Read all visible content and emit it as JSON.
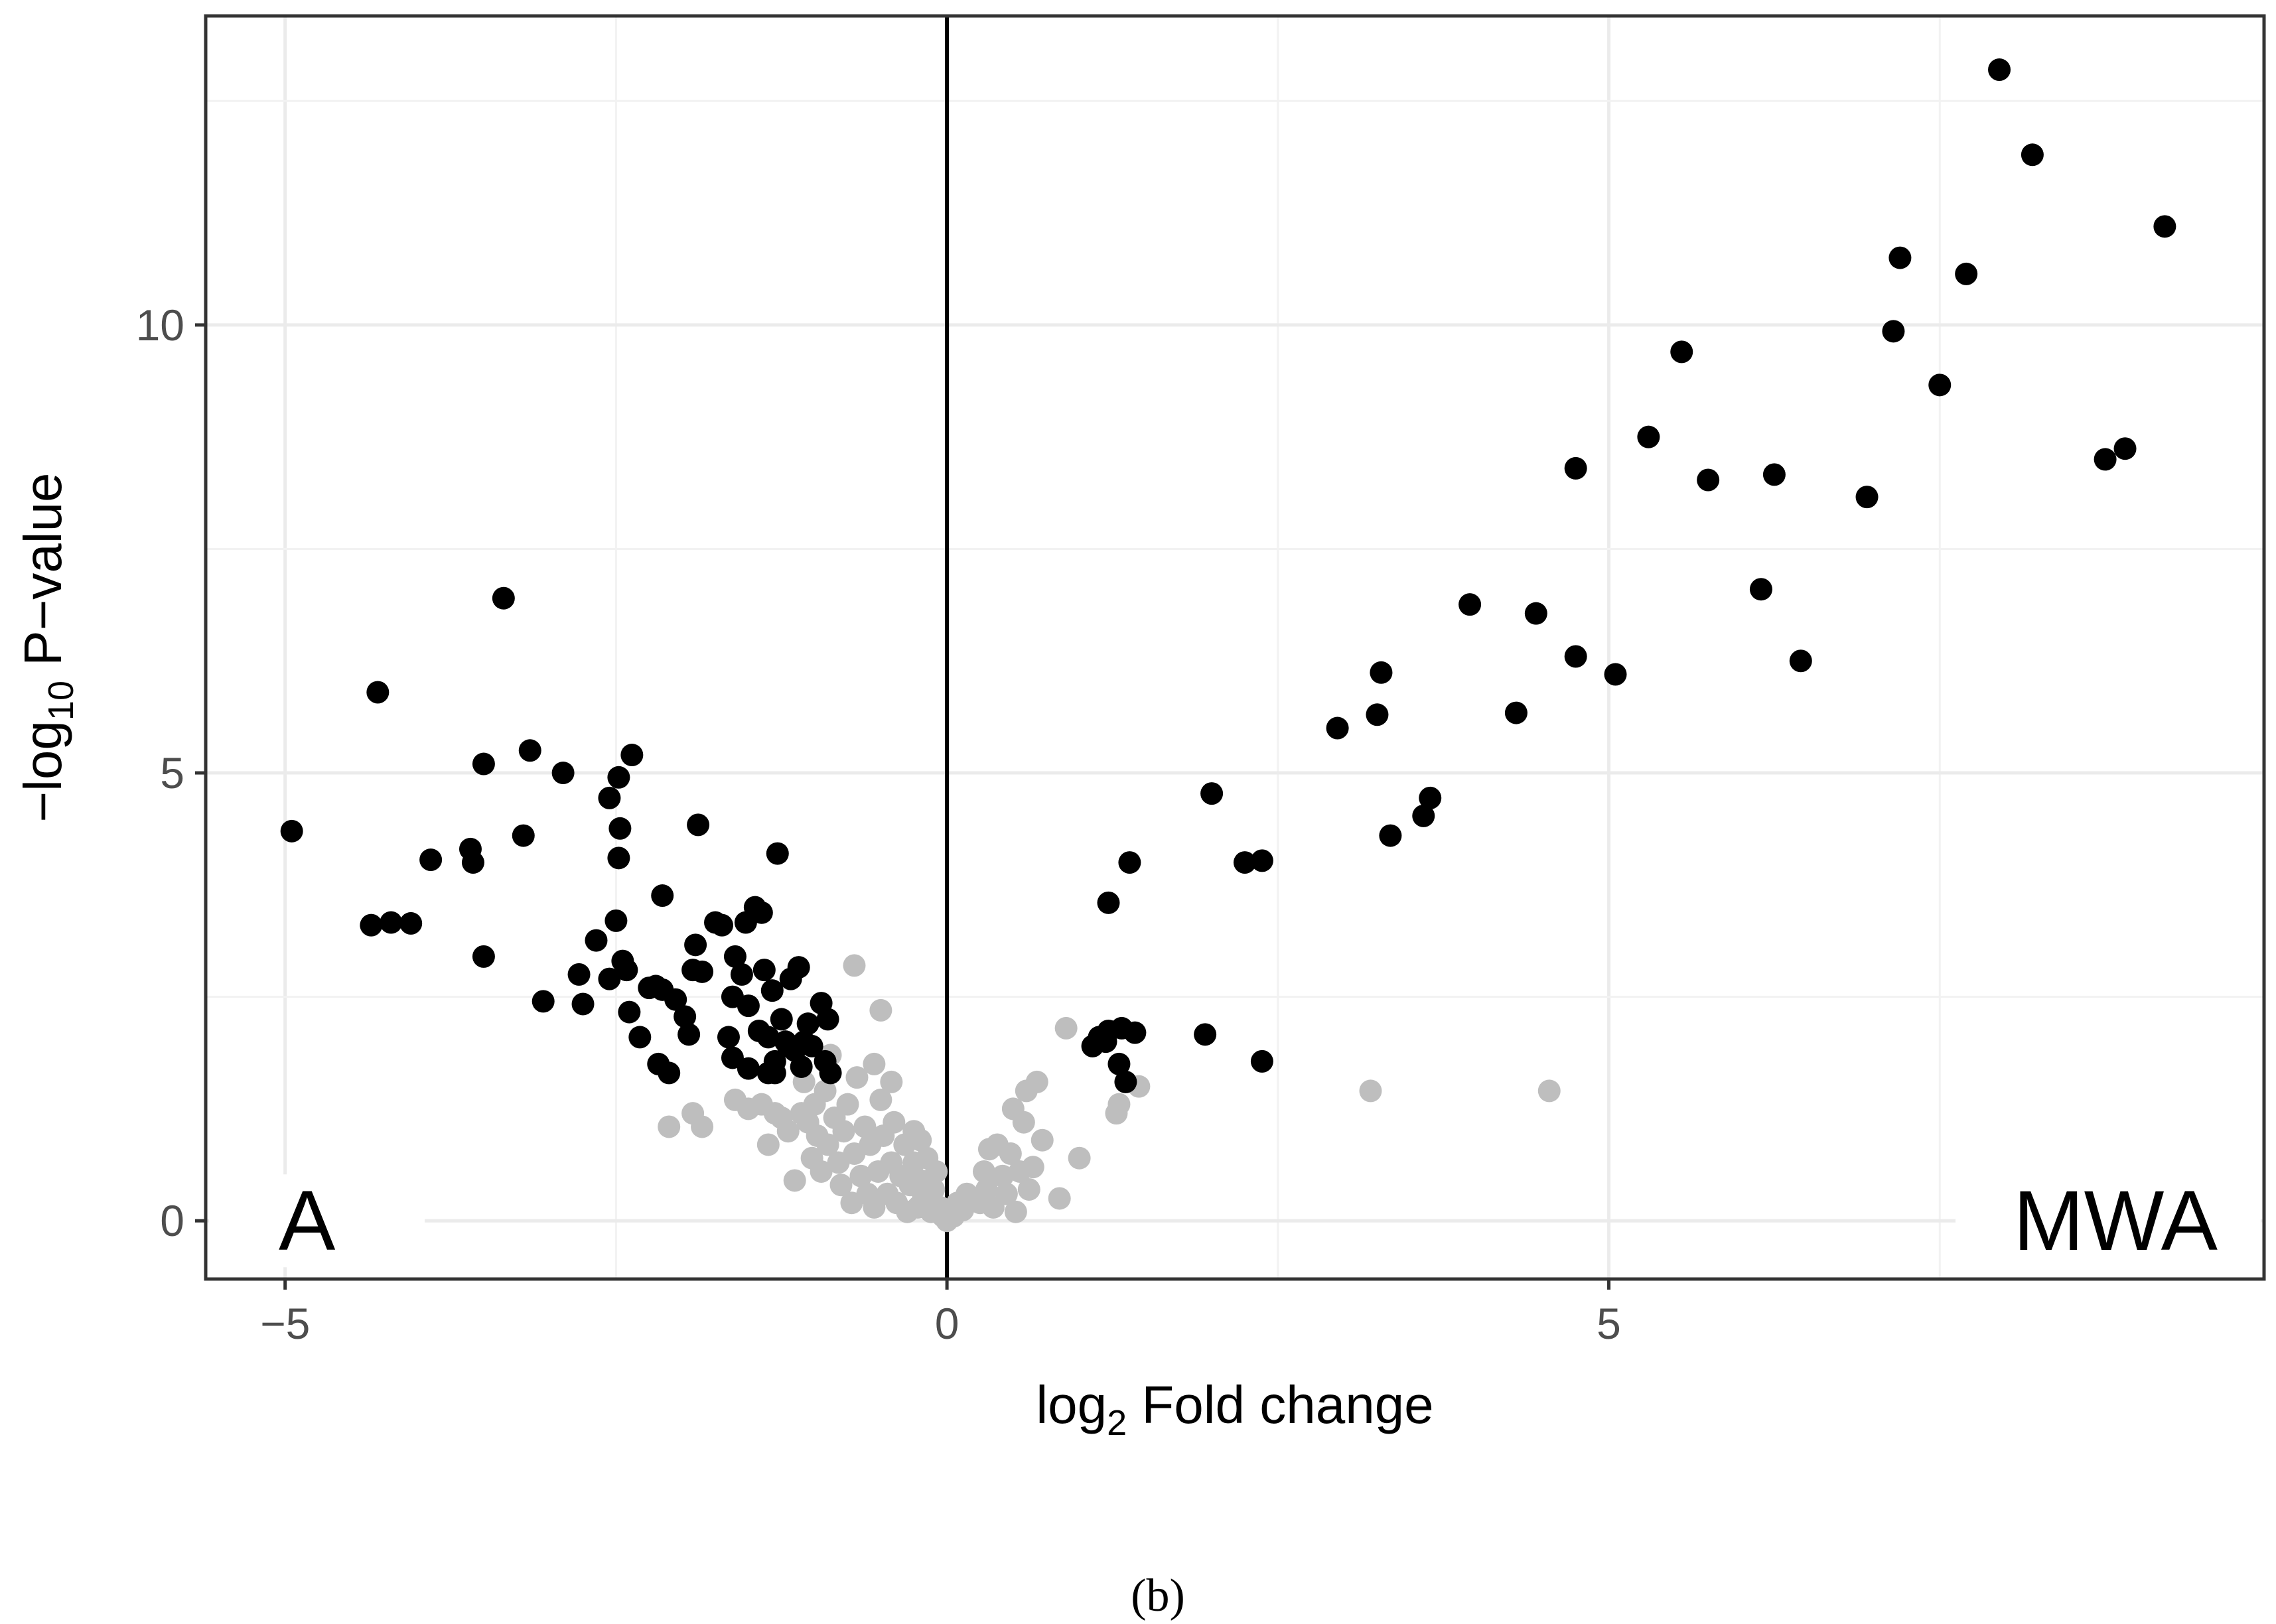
{
  "chart_data": {
    "type": "scatter",
    "title": "",
    "xlabel": {
      "prefix": "log",
      "subscript": "2",
      "suffix": " Fold change"
    },
    "ylabel": {
      "prefix": "−log",
      "subscript": "10",
      "suffix": " P−value"
    },
    "xlim": [
      -5.6,
      9.95
    ],
    "ylim": [
      -0.65,
      13.45
    ],
    "x_ticks": [
      -5,
      0,
      5
    ],
    "x_tick_labels": [
      "−5",
      "0",
      "5"
    ],
    "y_ticks": [
      0,
      5,
      10
    ],
    "y_tick_labels": [
      "0",
      "5",
      "10"
    ],
    "grid": true,
    "vline_x": 0,
    "corner_labels": {
      "left": "A",
      "right": "MWA"
    },
    "panel_label": "(b)",
    "colors": {
      "significant": "#000000",
      "not_significant": "#bebebe",
      "grid": "#ebebeb"
    },
    "series": [
      {
        "role": "significant",
        "points": [
          [
            -4.95,
            4.35
          ],
          [
            -4.3,
            5.9
          ],
          [
            -4.35,
            3.3
          ],
          [
            -4.2,
            3.33
          ],
          [
            -4.05,
            3.32
          ],
          [
            -3.9,
            4.03
          ],
          [
            -3.6,
            4.15
          ],
          [
            -3.58,
            4.0
          ],
          [
            -3.5,
            5.1
          ],
          [
            -3.5,
            2.95
          ],
          [
            -3.35,
            6.95
          ],
          [
            -3.2,
            4.3
          ],
          [
            -3.15,
            5.25
          ],
          [
            -3.05,
            2.45
          ],
          [
            -2.9,
            5.0
          ],
          [
            -2.78,
            2.75
          ],
          [
            -2.75,
            2.42
          ],
          [
            -2.65,
            3.13
          ],
          [
            -2.55,
            4.72
          ],
          [
            -2.55,
            2.7
          ],
          [
            -2.5,
            3.35
          ],
          [
            -2.48,
            4.95
          ],
          [
            -2.48,
            4.05
          ],
          [
            -2.47,
            4.38
          ],
          [
            -2.45,
            2.9
          ],
          [
            -2.42,
            2.8
          ],
          [
            -2.4,
            2.33
          ],
          [
            -2.38,
            5.2
          ],
          [
            -2.32,
            2.05
          ],
          [
            -2.25,
            2.6
          ],
          [
            -2.2,
            2.62
          ],
          [
            -2.18,
            1.75
          ],
          [
            -2.15,
            3.63
          ],
          [
            -2.15,
            2.58
          ],
          [
            -2.1,
            1.65
          ],
          [
            -2.05,
            2.47
          ],
          [
            -1.98,
            2.28
          ],
          [
            -1.95,
            2.08
          ],
          [
            -1.92,
            2.8
          ],
          [
            -1.9,
            3.08
          ],
          [
            -1.88,
            4.42
          ],
          [
            -1.85,
            2.78
          ],
          [
            -1.75,
            3.33
          ],
          [
            -1.7,
            3.3
          ],
          [
            -1.65,
            2.05
          ],
          [
            -1.62,
            2.5
          ],
          [
            -1.62,
            1.82
          ],
          [
            -1.6,
            2.95
          ],
          [
            -1.55,
            2.75
          ],
          [
            -1.52,
            3.33
          ],
          [
            -1.5,
            2.4
          ],
          [
            -1.5,
            1.7
          ],
          [
            -1.45,
            3.5
          ],
          [
            -1.42,
            2.12
          ],
          [
            -1.4,
            3.44
          ],
          [
            -1.38,
            2.8
          ],
          [
            -1.35,
            2.05
          ],
          [
            -1.35,
            1.65
          ],
          [
            -1.32,
            2.57
          ],
          [
            -1.3,
            1.78
          ],
          [
            -1.3,
            1.65
          ],
          [
            -1.28,
            4.1
          ],
          [
            -1.25,
            2.25
          ],
          [
            -1.22,
            2.0
          ],
          [
            -1.2,
            1.95
          ],
          [
            -1.18,
            2.7
          ],
          [
            -1.15,
            1.9
          ],
          [
            -1.12,
            2.83
          ],
          [
            -1.1,
            1.72
          ],
          [
            -1.08,
            2.0
          ],
          [
            -1.05,
            2.2
          ],
          [
            -1.02,
            1.95
          ],
          [
            -0.95,
            2.43
          ],
          [
            -0.92,
            1.78
          ],
          [
            -0.9,
            2.25
          ],
          [
            -0.88,
            1.65
          ],
          [
            1.1,
            1.95
          ],
          [
            1.15,
            2.05
          ],
          [
            1.2,
            2.0
          ],
          [
            1.22,
            2.12
          ],
          [
            1.22,
            3.55
          ],
          [
            1.3,
            1.75
          ],
          [
            1.32,
            2.15
          ],
          [
            1.35,
            1.55
          ],
          [
            1.38,
            4.0
          ],
          [
            1.42,
            2.1
          ],
          [
            1.95,
            2.08
          ],
          [
            2.0,
            4.77
          ],
          [
            2.25,
            4.0
          ],
          [
            2.38,
            4.02
          ],
          [
            2.38,
            1.78
          ],
          [
            2.95,
            5.5
          ],
          [
            3.25,
            5.65
          ],
          [
            3.28,
            6.12
          ],
          [
            3.35,
            4.3
          ],
          [
            3.6,
            4.52
          ],
          [
            3.65,
            4.72
          ],
          [
            3.95,
            6.88
          ],
          [
            4.3,
            5.67
          ],
          [
            4.45,
            6.78
          ],
          [
            4.75,
            6.3
          ],
          [
            4.75,
            8.4
          ],
          [
            5.05,
            6.1
          ],
          [
            5.3,
            8.75
          ],
          [
            5.55,
            9.7
          ],
          [
            5.75,
            8.27
          ],
          [
            6.15,
            7.05
          ],
          [
            6.25,
            8.33
          ],
          [
            6.45,
            6.25
          ],
          [
            6.95,
            8.08
          ],
          [
            7.15,
            9.93
          ],
          [
            7.2,
            10.75
          ],
          [
            7.5,
            9.33
          ],
          [
            7.7,
            10.57
          ],
          [
            7.95,
            12.85
          ],
          [
            8.2,
            11.9
          ],
          [
            8.75,
            8.5
          ],
          [
            8.9,
            8.62
          ],
          [
            9.2,
            11.1
          ]
        ]
      },
      {
        "role": "not_significant",
        "points": [
          [
            -2.1,
            1.05
          ],
          [
            -1.92,
            1.2
          ],
          [
            -1.85,
            1.05
          ],
          [
            -1.6,
            1.35
          ],
          [
            -1.5,
            1.25
          ],
          [
            -1.4,
            1.3
          ],
          [
            -1.35,
            0.85
          ],
          [
            -1.3,
            1.2
          ],
          [
            -1.25,
            1.15
          ],
          [
            -1.2,
            1.0
          ],
          [
            -1.15,
            0.45
          ],
          [
            -1.1,
            1.2
          ],
          [
            -1.08,
            1.55
          ],
          [
            -1.05,
            1.1
          ],
          [
            -1.02,
            0.7
          ],
          [
            -1.0,
            1.3
          ],
          [
            -0.98,
            0.95
          ],
          [
            -0.95,
            0.55
          ],
          [
            -0.92,
            1.45
          ],
          [
            -0.9,
            0.85
          ],
          [
            -0.88,
            1.85
          ],
          [
            -0.85,
            1.15
          ],
          [
            -0.82,
            0.65
          ],
          [
            -0.8,
            0.4
          ],
          [
            -0.78,
            1.0
          ],
          [
            -0.75,
            1.3
          ],
          [
            -0.72,
            0.2
          ],
          [
            -0.7,
            0.75
          ],
          [
            -0.7,
            2.85
          ],
          [
            -0.68,
            1.6
          ],
          [
            -0.65,
            0.5
          ],
          [
            -0.62,
            1.05
          ],
          [
            -0.6,
            0.3
          ],
          [
            -0.58,
            0.85
          ],
          [
            -0.55,
            1.75
          ],
          [
            -0.55,
            0.15
          ],
          [
            -0.52,
            0.55
          ],
          [
            -0.5,
            2.35
          ],
          [
            -0.5,
            1.35
          ],
          [
            -0.48,
            0.95
          ],
          [
            -0.45,
            0.3
          ],
          [
            -0.42,
            0.65
          ],
          [
            -0.42,
            1.55
          ],
          [
            -0.4,
            1.1
          ],
          [
            -0.38,
            0.2
          ],
          [
            -0.35,
            0.5
          ],
          [
            -0.32,
            0.85
          ],
          [
            -0.3,
            0.1
          ],
          [
            -0.28,
            0.4
          ],
          [
            -0.25,
            1.0
          ],
          [
            -0.25,
            0.65
          ],
          [
            -0.22,
            0.15
          ],
          [
            -0.2,
            0.45
          ],
          [
            -0.2,
            0.9
          ],
          [
            -0.18,
            0.25
          ],
          [
            -0.15,
            0.7
          ],
          [
            -0.12,
            0.1
          ],
          [
            -0.1,
            0.35
          ],
          [
            -0.08,
            0.55
          ],
          [
            -0.05,
            0.15
          ],
          [
            -0.03,
            0.05
          ],
          [
            0.0,
            0.0
          ],
          [
            0.05,
            0.05
          ],
          [
            0.08,
            0.2
          ],
          [
            0.12,
            0.12
          ],
          [
            0.15,
            0.3
          ],
          [
            0.2,
            0.25
          ],
          [
            0.25,
            0.2
          ],
          [
            0.28,
            0.55
          ],
          [
            0.3,
            0.35
          ],
          [
            0.32,
            0.8
          ],
          [
            0.35,
            0.15
          ],
          [
            0.38,
            0.85
          ],
          [
            0.42,
            0.5
          ],
          [
            0.45,
            0.3
          ],
          [
            0.48,
            0.75
          ],
          [
            0.5,
            1.25
          ],
          [
            0.52,
            0.1
          ],
          [
            0.55,
            0.55
          ],
          [
            0.58,
            1.1
          ],
          [
            0.6,
            1.45
          ],
          [
            0.62,
            0.35
          ],
          [
            0.65,
            0.6
          ],
          [
            0.68,
            1.55
          ],
          [
            0.72,
            0.9
          ],
          [
            0.85,
            0.25
          ],
          [
            0.9,
            2.15
          ],
          [
            1.0,
            0.7
          ],
          [
            1.28,
            1.2
          ],
          [
            1.3,
            1.3
          ],
          [
            1.45,
            1.5
          ],
          [
            3.2,
            1.45
          ],
          [
            4.55,
            1.45
          ]
        ]
      }
    ]
  }
}
